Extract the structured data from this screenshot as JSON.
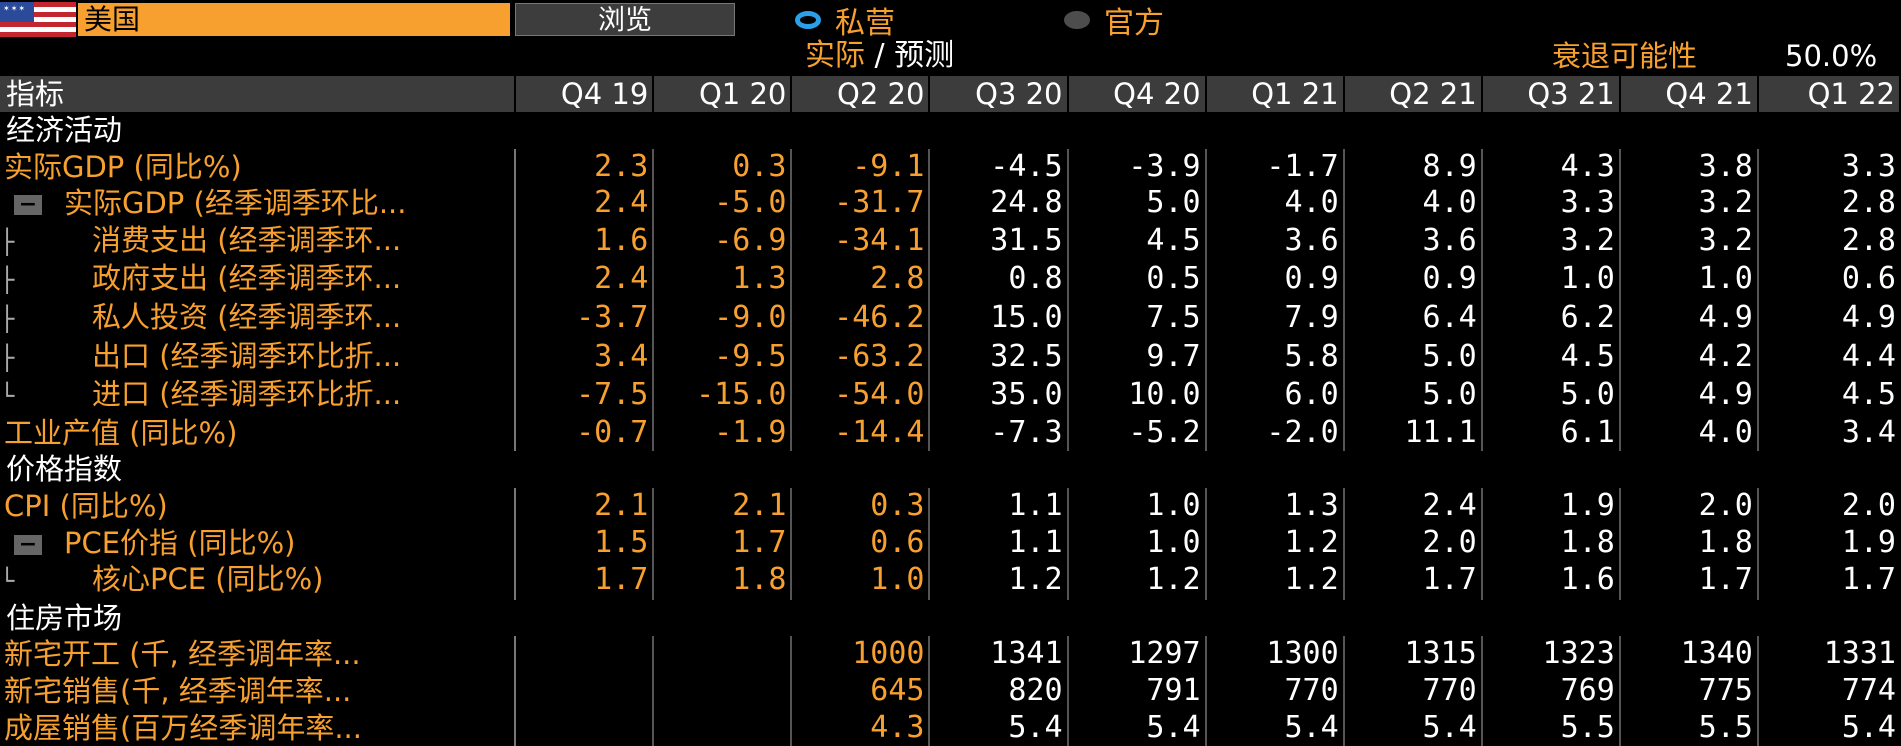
{
  "header": {
    "country": "美国",
    "browse_label": "浏览",
    "radio_private": "私营",
    "radio_official": "官方",
    "actual_label": "实际",
    "forecast_label": "预测",
    "recession_label": "衰退可能性",
    "recession_value": "50.0%"
  },
  "table": {
    "col_label": "指标",
    "columns": [
      "Q4 19",
      "Q1 20",
      "Q2 20",
      "Q3 20",
      "Q4 20",
      "Q1 21",
      "Q2 21",
      "Q3 21",
      "Q4 21",
      "Q1 22"
    ],
    "sections": {
      "econ": "经济活动",
      "price": "价格指数",
      "housing": "住房市场"
    },
    "rows": [
      {
        "label": "实际GDP (同比%)",
        "values": [
          "2.3",
          "0.3",
          "-9.1",
          "-4.5",
          "-3.9",
          "-1.7",
          "8.9",
          "4.3",
          "3.8",
          "3.3"
        ]
      },
      {
        "label": "实际GDP (经季调季环比...",
        "values": [
          "2.4",
          "-5.0",
          "-31.7",
          "24.8",
          "5.0",
          "4.0",
          "4.0",
          "3.3",
          "3.2",
          "2.8"
        ]
      },
      {
        "label": "消费支出 (经季调季环...",
        "values": [
          "1.6",
          "-6.9",
          "-34.1",
          "31.5",
          "4.5",
          "3.6",
          "3.6",
          "3.2",
          "3.2",
          "2.8"
        ]
      },
      {
        "label": "政府支出 (经季调季环...",
        "values": [
          "2.4",
          "1.3",
          "2.8",
          "0.8",
          "0.5",
          "0.9",
          "0.9",
          "1.0",
          "1.0",
          "0.6"
        ]
      },
      {
        "label": "私人投资 (经季调季环...",
        "values": [
          "-3.7",
          "-9.0",
          "-46.2",
          "15.0",
          "7.5",
          "7.9",
          "6.4",
          "6.2",
          "4.9",
          "4.9"
        ]
      },
      {
        "label": "出口 (经季调季环比折...",
        "values": [
          "3.4",
          "-9.5",
          "-63.2",
          "32.5",
          "9.7",
          "5.8",
          "5.0",
          "4.5",
          "4.2",
          "4.4"
        ]
      },
      {
        "label": "进口 (经季调季环比折...",
        "values": [
          "-7.5",
          "-15.0",
          "-54.0",
          "35.0",
          "10.0",
          "6.0",
          "5.0",
          "5.0",
          "4.9",
          "4.5"
        ]
      },
      {
        "label": "工业产值 (同比%)",
        "values": [
          "-0.7",
          "-1.9",
          "-14.4",
          "-7.3",
          "-5.2",
          "-2.0",
          "11.1",
          "6.1",
          "4.0",
          "3.4"
        ]
      },
      {
        "label": "CPI (同比%)",
        "values": [
          "2.1",
          "2.1",
          "0.3",
          "1.1",
          "1.0",
          "1.3",
          "2.4",
          "1.9",
          "2.0",
          "2.0"
        ]
      },
      {
        "label": "PCE价指 (同比%)",
        "values": [
          "1.5",
          "1.7",
          "0.6",
          "1.1",
          "1.0",
          "1.2",
          "2.0",
          "1.8",
          "1.8",
          "1.9"
        ]
      },
      {
        "label": "核心PCE (同比%)",
        "values": [
          "1.7",
          "1.8",
          "1.0",
          "1.2",
          "1.2",
          "1.2",
          "1.7",
          "1.6",
          "1.7",
          "1.7"
        ]
      },
      {
        "label": "新宅开工 (千, 经季调年率...",
        "values": [
          "",
          "",
          "1000",
          "1341",
          "1297",
          "1300",
          "1315",
          "1323",
          "1340",
          "1331"
        ]
      },
      {
        "label": "新宅销售(千, 经季调年率...",
        "values": [
          "",
          "",
          "645",
          "820",
          "791",
          "770",
          "770",
          "769",
          "775",
          "774"
        ]
      },
      {
        "label": "成屋销售(百万经季调年率...",
        "values": [
          "",
          "",
          "4.3",
          "5.4",
          "5.4",
          "5.4",
          "5.4",
          "5.5",
          "5.5",
          "5.4"
        ]
      }
    ]
  },
  "colors": {
    "accent": "#f7a030",
    "radio_on": "#29a0e8",
    "header_bg": "#3c3c3c"
  }
}
